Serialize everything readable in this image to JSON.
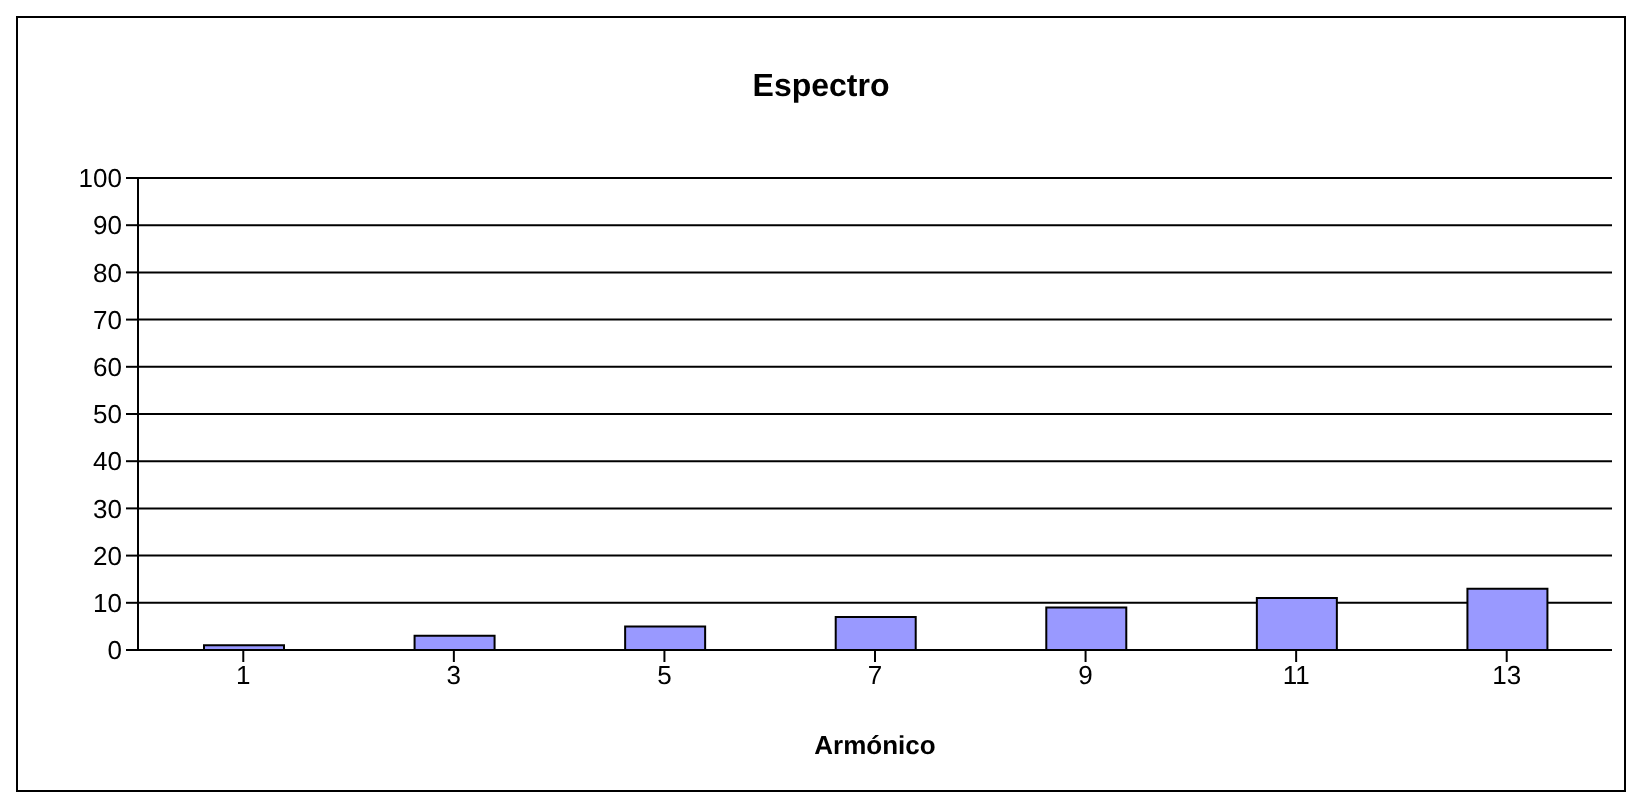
{
  "chart_data": {
    "type": "bar",
    "title": "Espectro",
    "xlabel": "Armónico",
    "categories": [
      "1",
      "3",
      "5",
      "7",
      "9",
      "11",
      "13"
    ],
    "values": [
      1,
      3,
      5,
      7,
      9,
      11,
      13
    ],
    "color": "#9999ff",
    "ylim": [
      0,
      100
    ],
    "yticks": [
      0,
      10,
      20,
      30,
      40,
      50,
      60,
      70,
      80,
      90,
      100
    ],
    "grid": "y"
  }
}
